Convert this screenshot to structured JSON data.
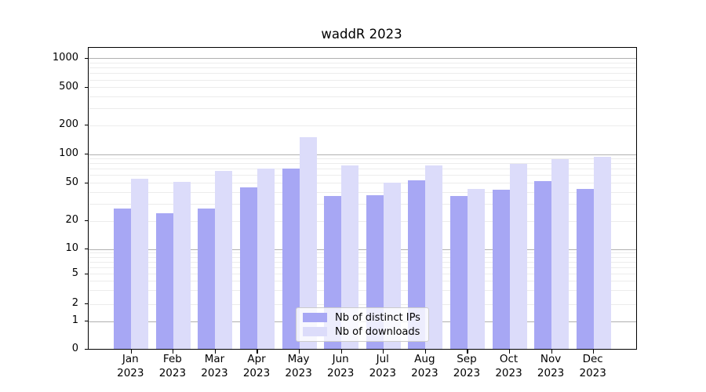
{
  "title": "waddR 2023",
  "axes": {
    "y_ticks": [
      {
        "label": "1000",
        "value": 1000
      },
      {
        "label": "500",
        "value": 500
      },
      {
        "label": "200",
        "value": 200
      },
      {
        "label": "100",
        "value": 100
      },
      {
        "label": "50",
        "value": 50
      },
      {
        "label": "20",
        "value": 20
      },
      {
        "label": "10",
        "value": 10
      },
      {
        "label": "5",
        "value": 5
      },
      {
        "label": "2",
        "value": 2
      },
      {
        "label": "1",
        "value": 1
      },
      {
        "label": "0",
        "value": 0
      }
    ],
    "months": [
      "Jan",
      "Feb",
      "Mar",
      "Apr",
      "May",
      "Jun",
      "Jul",
      "Aug",
      "Sep",
      "Oct",
      "Nov",
      "Dec"
    ],
    "year": "2023"
  },
  "legend": {
    "items": [
      {
        "label": "Nb of distinct IPs",
        "color": "#a7a7f4"
      },
      {
        "label": "Nb of downloads",
        "color": "#dcdcfa"
      }
    ]
  },
  "colors": {
    "distinct_ips": "#a7a7f4",
    "downloads": "#dcdcfa",
    "major_grid": "#b0b0b0",
    "minor_grid": "#ececec",
    "axis": "#000000"
  },
  "chart_data": {
    "type": "bar",
    "title": "waddR 2023",
    "categories": [
      "Jan 2023",
      "Feb 2023",
      "Mar 2023",
      "Apr 2023",
      "May 2023",
      "Jun 2023",
      "Jul 2023",
      "Aug 2023",
      "Sep 2023",
      "Oct 2023",
      "Nov 2023",
      "Dec 2023"
    ],
    "series": [
      {
        "name": "Nb of distinct IPs",
        "color": "#a7a7f4",
        "values": [
          27,
          24,
          27,
          45,
          71,
          36,
          37,
          53,
          36,
          42,
          52,
          43
        ]
      },
      {
        "name": "Nb of downloads",
        "color": "#dcdcfa",
        "values": [
          55,
          51,
          66,
          71,
          150,
          76,
          50,
          76,
          43,
          79,
          89,
          93
        ]
      }
    ],
    "yscale": "symlog",
    "yticks": [
      0,
      1,
      2,
      5,
      10,
      20,
      50,
      100,
      200,
      500,
      1000
    ],
    "ylim": [
      0,
      1300
    ],
    "xlabel": "",
    "ylabel": "",
    "grid": true,
    "legend_position": "lower center"
  }
}
